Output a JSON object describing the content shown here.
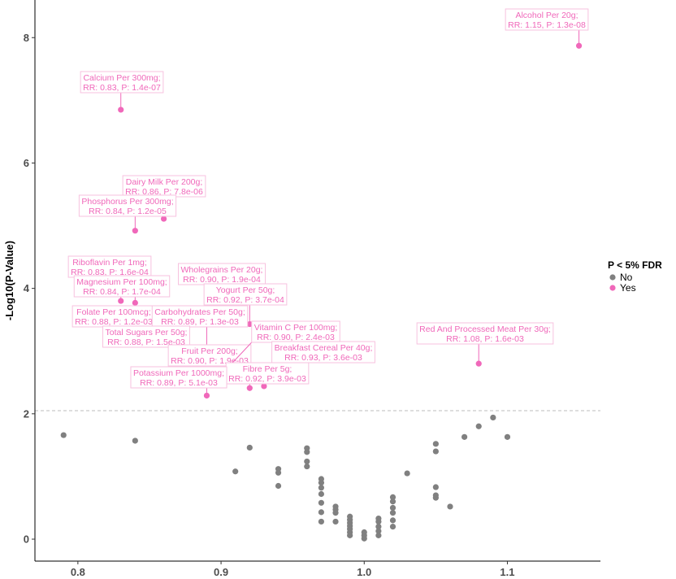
{
  "chart_data": {
    "type": "scatter",
    "title": "",
    "xlabel": "",
    "ylabel": "-Log10(P-Value)",
    "xlim": [
      0.77,
      1.165
    ],
    "ylim": [
      -0.35,
      8.6
    ],
    "x_ticks": [
      0.8,
      0.9,
      1.0,
      1.1
    ],
    "x_tick_labels": [
      "0.8",
      "0.9",
      "1.0",
      "1.1"
    ],
    "y_ticks": [
      0,
      2,
      4,
      6,
      8
    ],
    "y_tick_labels": [
      "0",
      "2",
      "4",
      "6",
      "8"
    ],
    "threshold_y": 2.05,
    "grid": false,
    "legend": {
      "title": "P < 5% FDR",
      "position": "right",
      "entries": [
        {
          "label": "No",
          "color": "#808080"
        },
        {
          "label": "Yes",
          "color": "#f068ba"
        }
      ]
    },
    "series": [
      {
        "name": "No",
        "color": "#808080",
        "points": [
          {
            "x": 0.79,
            "y": 1.66
          },
          {
            "x": 0.84,
            "y": 1.57
          },
          {
            "x": 0.91,
            "y": 1.08
          },
          {
            "x": 0.92,
            "y": 1.46
          },
          {
            "x": 0.94,
            "y": 1.12
          },
          {
            "x": 0.94,
            "y": 1.06
          },
          {
            "x": 0.94,
            "y": 0.85
          },
          {
            "x": 0.96,
            "y": 1.45
          },
          {
            "x": 0.96,
            "y": 1.39
          },
          {
            "x": 0.96,
            "y": 1.24
          },
          {
            "x": 0.96,
            "y": 1.16
          },
          {
            "x": 0.97,
            "y": 0.96
          },
          {
            "x": 0.97,
            "y": 0.9
          },
          {
            "x": 0.97,
            "y": 0.82
          },
          {
            "x": 0.97,
            "y": 0.72
          },
          {
            "x": 0.97,
            "y": 0.58
          },
          {
            "x": 0.97,
            "y": 0.43
          },
          {
            "x": 0.97,
            "y": 0.28
          },
          {
            "x": 0.98,
            "y": 0.52
          },
          {
            "x": 0.98,
            "y": 0.47
          },
          {
            "x": 0.98,
            "y": 0.42
          },
          {
            "x": 0.98,
            "y": 0.28
          },
          {
            "x": 0.99,
            "y": 0.36
          },
          {
            "x": 0.99,
            "y": 0.31
          },
          {
            "x": 0.99,
            "y": 0.26
          },
          {
            "x": 0.99,
            "y": 0.21
          },
          {
            "x": 0.99,
            "y": 0.16
          },
          {
            "x": 0.99,
            "y": 0.11
          },
          {
            "x": 0.99,
            "y": 0.06
          },
          {
            "x": 1.0,
            "y": 0.11
          },
          {
            "x": 1.0,
            "y": 0.06
          },
          {
            "x": 1.0,
            "y": 0.01
          },
          {
            "x": 1.01,
            "y": 0.33
          },
          {
            "x": 1.01,
            "y": 0.28
          },
          {
            "x": 1.01,
            "y": 0.2
          },
          {
            "x": 1.01,
            "y": 0.13
          },
          {
            "x": 1.01,
            "y": 0.06
          },
          {
            "x": 1.02,
            "y": 0.67
          },
          {
            "x": 1.02,
            "y": 0.6
          },
          {
            "x": 1.02,
            "y": 0.5
          },
          {
            "x": 1.02,
            "y": 0.42
          },
          {
            "x": 1.02,
            "y": 0.3
          },
          {
            "x": 1.02,
            "y": 0.2
          },
          {
            "x": 1.03,
            "y": 1.05
          },
          {
            "x": 1.05,
            "y": 1.52
          },
          {
            "x": 1.05,
            "y": 1.4
          },
          {
            "x": 1.05,
            "y": 0.83
          },
          {
            "x": 1.05,
            "y": 0.7
          },
          {
            "x": 1.05,
            "y": 0.66
          },
          {
            "x": 1.06,
            "y": 0.52
          },
          {
            "x": 1.07,
            "y": 1.63
          },
          {
            "x": 1.08,
            "y": 1.8
          },
          {
            "x": 1.09,
            "y": 1.94
          },
          {
            "x": 1.1,
            "y": 1.63
          }
        ]
      },
      {
        "name": "Yes",
        "color": "#f068ba",
        "points": [
          {
            "x": 1.15,
            "y": 7.87,
            "label": [
              "Alcohol Per 20g;",
              "RR: 1.15, P: 1.3e-08"
            ]
          },
          {
            "x": 0.83,
            "y": 6.85,
            "label": [
              "Calcium Per 300mg;",
              "RR: 0.83, P: 1.4e-07"
            ]
          },
          {
            "x": 0.86,
            "y": 5.11,
            "label": [
              "Dairy Milk Per 200g;",
              "RR: 0.86, P: 7.8e-06"
            ]
          },
          {
            "x": 0.84,
            "y": 4.92,
            "label": [
              "Phosphorus Per 300mg;",
              "RR: 0.84, P: 1.2e-05"
            ]
          },
          {
            "x": 0.83,
            "y": 3.8,
            "label": [
              "Riboflavin Per 1mg;",
              "RR: 0.83, P: 1.6e-04"
            ]
          },
          {
            "x": 0.84,
            "y": 3.77,
            "label": [
              "Magnesium Per 100mg;",
              "RR: 0.84, P: 1.7e-04"
            ]
          },
          {
            "x": 0.9,
            "y": 3.72,
            "label": [
              "Wholegrains Per 20g;",
              "RR: 0.90, P: 1.9e-04"
            ]
          },
          {
            "x": 0.92,
            "y": 3.43,
            "label": [
              "Yogurt Per 50g;",
              "RR: 0.92, P: 3.7e-04"
            ]
          },
          {
            "x": 0.88,
            "y": 2.92,
            "label": [
              "Folate Per 100mcg;",
              "RR: 0.88, P: 1.2e-03"
            ]
          },
          {
            "x": 0.89,
            "y": 2.89,
            "label": [
              "Carbohydrates Per 50g;",
              "RR: 0.89, P: 1.3e-03"
            ]
          },
          {
            "x": 0.88,
            "y": 2.82,
            "label": [
              "Total Sugars Per 50g;",
              "RR: 0.88, P: 1.5e-03"
            ]
          },
          {
            "x": 1.08,
            "y": 2.8,
            "label": [
              "Red And Processed Meat Per 30g;",
              "RR: 1.08, P: 1.6e-03"
            ]
          },
          {
            "x": 0.9,
            "y": 2.72,
            "label": [
              "Fruit Per 200g;",
              "RR: 0.90, P: 1.9e-03"
            ]
          },
          {
            "x": 0.9,
            "y": 2.62,
            "label": [
              "Vitamin C Per 100mg;",
              "RR: 0.90, P: 2.4e-03"
            ]
          },
          {
            "x": 0.93,
            "y": 2.44,
            "label": [
              "Breakfast Cereal Per 40g;",
              "RR: 0.93, P: 3.6e-03"
            ]
          },
          {
            "x": 0.92,
            "y": 2.41,
            "label": [
              "Fibre Per 5g;",
              "RR: 0.92, P: 3.9e-03"
            ]
          },
          {
            "x": 0.89,
            "y": 2.29,
            "label": [
              "Potassium Per 1000mg;",
              "RR: 0.89, P: 5.1e-03"
            ]
          }
        ]
      }
    ]
  }
}
